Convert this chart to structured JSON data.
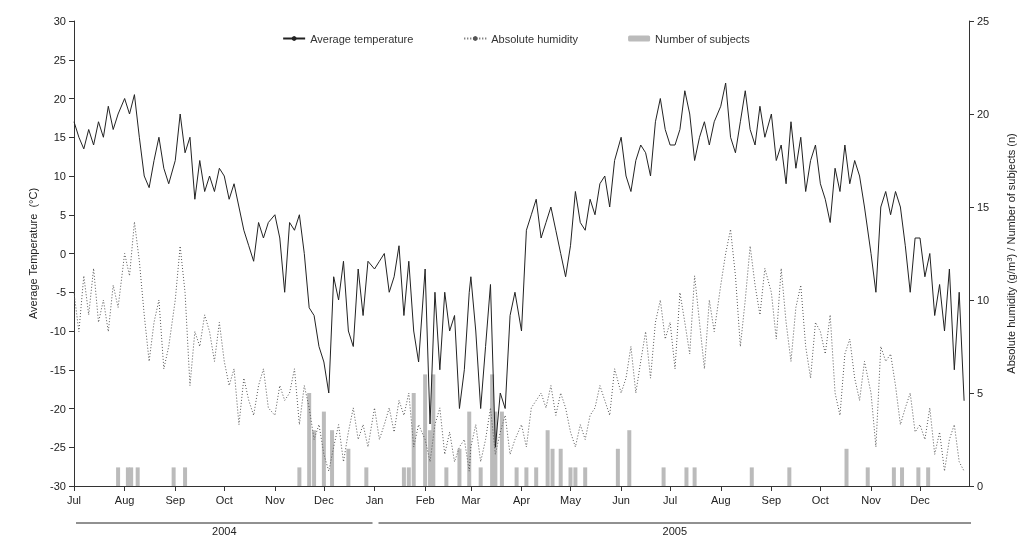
{
  "chart_data": {
    "type": "line",
    "xlabel": null,
    "ylabel": "Average Temperature  (°C)",
    "y2label": "Absolute humidity (g/m$^{3}$) / Number of subjects (n)",
    "x": [
      "2004-07-01",
      "2004-07-04",
      "2004-07-07",
      "2004-07-10",
      "2004-07-13",
      "2004-07-16",
      "2004-07-19",
      "2004-07-22",
      "2004-07-25",
      "2004-07-28",
      "2004-08-01",
      "2004-08-04",
      "2004-08-07",
      "2004-08-10",
      "2004-08-13",
      "2004-08-16",
      "2004-08-19",
      "2004-08-22",
      "2004-08-25",
      "2004-08-28",
      "2004-09-01",
      "2004-09-04",
      "2004-09-07",
      "2004-09-10",
      "2004-09-13",
      "2004-09-16",
      "2004-09-19",
      "2004-09-22",
      "2004-09-25",
      "2004-09-28",
      "2004-10-01",
      "2004-10-04",
      "2004-10-07",
      "2004-10-10",
      "2004-10-13",
      "2004-10-16",
      "2004-10-19",
      "2004-10-22",
      "2004-10-25",
      "2004-10-28",
      "2004-11-01",
      "2004-11-04",
      "2004-11-07",
      "2004-11-10",
      "2004-11-13",
      "2004-11-16",
      "2004-11-19",
      "2004-11-22",
      "2004-11-25",
      "2004-11-28",
      "2004-12-01",
      "2004-12-04",
      "2004-12-07",
      "2004-12-10",
      "2004-12-13",
      "2004-12-16",
      "2004-12-19",
      "2004-12-22",
      "2004-12-25",
      "2004-12-28",
      "2005-01-01",
      "2005-01-04",
      "2005-01-07",
      "2005-01-10",
      "2005-01-13",
      "2005-01-16",
      "2005-01-19",
      "2005-01-22",
      "2005-01-25",
      "2005-01-28",
      "2005-02-01",
      "2005-02-04",
      "2005-02-07",
      "2005-02-10",
      "2005-02-13",
      "2005-02-16",
      "2005-02-19",
      "2005-02-22",
      "2005-02-25",
      "2005-02-28",
      "2005-03-01",
      "2005-03-04",
      "2005-03-07",
      "2005-03-10",
      "2005-03-13",
      "2005-03-16",
      "2005-03-19",
      "2005-03-22",
      "2005-03-25",
      "2005-03-28",
      "2005-04-01",
      "2005-04-04",
      "2005-04-07",
      "2005-04-10",
      "2005-04-13",
      "2005-04-16",
      "2005-04-19",
      "2005-04-22",
      "2005-04-25",
      "2005-04-28",
      "2005-05-01",
      "2005-05-04",
      "2005-05-07",
      "2005-05-10",
      "2005-05-13",
      "2005-05-16",
      "2005-05-19",
      "2005-05-22",
      "2005-05-25",
      "2005-05-28",
      "2005-06-01",
      "2005-06-04",
      "2005-06-07",
      "2005-06-10",
      "2005-06-13",
      "2005-06-16",
      "2005-06-19",
      "2005-06-22",
      "2005-06-25",
      "2005-06-28",
      "2005-07-01",
      "2005-07-04",
      "2005-07-07",
      "2005-07-10",
      "2005-07-13",
      "2005-07-16",
      "2005-07-19",
      "2005-07-22",
      "2005-07-25",
      "2005-07-28",
      "2005-08-01",
      "2005-08-04",
      "2005-08-07",
      "2005-08-10",
      "2005-08-13",
      "2005-08-16",
      "2005-08-19",
      "2005-08-22",
      "2005-08-25",
      "2005-08-28",
      "2005-09-01",
      "2005-09-04",
      "2005-09-07",
      "2005-09-10",
      "2005-09-13",
      "2005-09-16",
      "2005-09-19",
      "2005-09-22",
      "2005-09-25",
      "2005-09-28",
      "2005-10-01",
      "2005-10-04",
      "2005-10-07",
      "2005-10-10",
      "2005-10-13",
      "2005-10-16",
      "2005-10-19",
      "2005-10-22",
      "2005-10-25",
      "2005-10-28",
      "2005-11-01",
      "2005-11-04",
      "2005-11-07",
      "2005-11-10",
      "2005-11-13",
      "2005-11-16",
      "2005-11-19",
      "2005-11-22",
      "2005-11-25",
      "2005-11-28",
      "2005-12-01",
      "2005-12-04",
      "2005-12-07",
      "2005-12-10",
      "2005-12-13",
      "2005-12-16",
      "2005-12-19",
      "2005-12-22",
      "2005-12-25",
      "2005-12-28"
    ],
    "series": [
      {
        "name": "Average temperature",
        "color": "#222222",
        "line_style": "solid",
        "values": [
          17,
          15,
          13.5,
          16,
          14,
          17,
          15,
          19,
          16,
          18,
          20,
          18,
          20.5,
          15,
          10,
          8.5,
          12,
          15,
          11,
          9,
          12,
          18,
          13,
          15,
          7,
          12,
          8,
          10,
          8,
          11,
          10,
          7,
          9,
          6,
          3,
          1,
          -1,
          4,
          2,
          4,
          5,
          2,
          -5,
          4,
          3,
          5,
          0,
          -7,
          -8,
          -12,
          -14,
          -18,
          -3,
          -6,
          -1,
          -10,
          -12,
          -2,
          -8,
          -1,
          -2,
          -1,
          0,
          -5,
          -3,
          1,
          -8,
          -1,
          -10,
          -14,
          -2,
          -22,
          -5,
          -15,
          -5,
          -10,
          -8,
          -20,
          -15,
          -5,
          -3,
          -10,
          -20,
          -12,
          -4,
          -25,
          -18,
          -20,
          -8,
          -5,
          -10,
          3,
          5,
          7,
          2,
          4,
          6,
          3,
          0,
          -3,
          1,
          8,
          4,
          3,
          7,
          5,
          9,
          10,
          6,
          12,
          15,
          10,
          8,
          12,
          14,
          13,
          10,
          17,
          20,
          16,
          14,
          14,
          16,
          21,
          18,
          12,
          15,
          17,
          14,
          17,
          19,
          22,
          15,
          13,
          17,
          21,
          16,
          14,
          19,
          15,
          18,
          12,
          14,
          9,
          17,
          11,
          15,
          8,
          12,
          14,
          9,
          7,
          4,
          11,
          8,
          14,
          9,
          12,
          10,
          6,
          0,
          -5,
          6,
          8,
          5,
          8,
          6,
          1,
          -5,
          2,
          2,
          -3,
          0,
          -8,
          -4,
          -10,
          -2,
          -15,
          -5,
          -19
        ]
      },
      {
        "name": "Absolute humidity",
        "axis": "y2",
        "color": "#555555",
        "line_style": "dotted",
        "values": [
          10.4,
          8.3,
          11.3,
          9.2,
          11.7,
          8.8,
          10,
          8.3,
          10.8,
          9.6,
          12.5,
          11.3,
          14.2,
          12.1,
          9.2,
          6.7,
          8.8,
          10,
          6.3,
          7.5,
          10,
          12.9,
          10.4,
          5.4,
          8.3,
          7.5,
          9.2,
          8.3,
          6.7,
          8.8,
          6.7,
          5.4,
          6.3,
          3.3,
          5.8,
          4.6,
          3.8,
          5.4,
          6.3,
          4.2,
          3.8,
          5.4,
          4.6,
          5,
          6.3,
          3.3,
          5.4,
          4.2,
          2.5,
          3.3,
          1.7,
          0.8,
          2.1,
          3.3,
          1.3,
          2.9,
          4.2,
          2.5,
          3.3,
          2.1,
          4.2,
          2.5,
          3.3,
          4.2,
          2.9,
          4.6,
          3.8,
          5,
          2.1,
          3.3,
          2.5,
          1.3,
          3.3,
          4.2,
          1.7,
          2.9,
          1.3,
          2.1,
          2.5,
          0.8,
          2.1,
          3.3,
          1.3,
          2.5,
          4.2,
          1.7,
          2.9,
          3.8,
          1.7,
          2.5,
          3.3,
          2.1,
          4.2,
          4.6,
          5,
          4.2,
          5.4,
          3.8,
          5,
          4.2,
          2.9,
          2.1,
          3.3,
          2.5,
          3.8,
          4.2,
          5.4,
          4.6,
          3.8,
          6.3,
          5,
          5.8,
          7.5,
          5,
          6.7,
          8.3,
          5.8,
          8.8,
          10,
          7.9,
          8.8,
          6.3,
          10.4,
          8.8,
          7.1,
          11.3,
          8.8,
          6.3,
          10,
          8.3,
          10.8,
          12.5,
          13.8,
          11.3,
          7.5,
          10,
          12.9,
          10.8,
          9.2,
          11.7,
          10.4,
          7.9,
          11.7,
          8.8,
          6.7,
          9.6,
          10.8,
          7.5,
          5.8,
          8.8,
          8.3,
          7.1,
          9.2,
          5,
          3.8,
          7.1,
          7.9,
          5.8,
          4.6,
          6.7,
          5,
          2.1,
          7.5,
          6.7,
          7.1,
          5.4,
          3.3,
          4.2,
          5,
          2.9,
          3.3,
          2.5,
          4.2,
          1.7,
          2.9,
          0.8,
          2.5,
          3.3,
          1.3,
          0.8
        ]
      },
      {
        "name": "Number of subjects",
        "type": "bar",
        "axis": "y2",
        "color": "#bbbbbb",
        "x": [
          "2004-07-28",
          "2004-08-03",
          "2004-08-05",
          "2004-08-09",
          "2004-08-31",
          "2004-09-07",
          "2004-11-16",
          "2004-11-22",
          "2004-11-25",
          "2004-12-01",
          "2004-12-06",
          "2004-12-16",
          "2004-12-27",
          "2005-01-19",
          "2005-01-22",
          "2005-01-25",
          "2005-02-01",
          "2005-02-04",
          "2005-02-06",
          "2005-02-14",
          "2005-02-22",
          "2005-02-28",
          "2005-03-07",
          "2005-03-14",
          "2005-03-16",
          "2005-03-20",
          "2005-03-29",
          "2005-04-04",
          "2005-04-10",
          "2005-04-17",
          "2005-04-20",
          "2005-04-25",
          "2005-05-01",
          "2005-05-04",
          "2005-05-10",
          "2005-05-30",
          "2005-06-06",
          "2005-06-27",
          "2005-07-11",
          "2005-07-16",
          "2005-08-20",
          "2005-09-12",
          "2005-10-17",
          "2005-10-30",
          "2005-11-15",
          "2005-11-20",
          "2005-11-30",
          "2005-12-06"
        ],
        "values": [
          1,
          1,
          1,
          1,
          1,
          1,
          1,
          5,
          3,
          4,
          3,
          2,
          1,
          1,
          1,
          5,
          6,
          3,
          6,
          1,
          2,
          4,
          1,
          6,
          4,
          4,
          1,
          1,
          1,
          3,
          2,
          2,
          1,
          1,
          1,
          2,
          3,
          1,
          1,
          1,
          1,
          1,
          2,
          1,
          1,
          1,
          1,
          1
        ]
      }
    ],
    "xlim": [
      "2004-07-01",
      "2005-12-31"
    ],
    "xticks": [
      {
        "value": "2004-07-01",
        "label": "Jul"
      },
      {
        "value": "2004-08-01",
        "label": "Aug"
      },
      {
        "value": "2004-09-01",
        "label": "Sep"
      },
      {
        "value": "2004-10-01",
        "label": "Oct"
      },
      {
        "value": "2004-11-01",
        "label": "Nov"
      },
      {
        "value": "2004-12-01",
        "label": "Dec"
      },
      {
        "value": "2005-01-01",
        "label": "Jan"
      },
      {
        "value": "2005-02-01",
        "label": "Feb"
      },
      {
        "value": "2005-03-01",
        "label": "Mar"
      },
      {
        "value": "2005-04-01",
        "label": "Apr"
      },
      {
        "value": "2005-05-01",
        "label": "May"
      },
      {
        "value": "2005-06-01",
        "label": "Jun"
      },
      {
        "value": "2005-07-01",
        "label": "Jul"
      },
      {
        "value": "2005-08-01",
        "label": "Aug"
      },
      {
        "value": "2005-09-01",
        "label": "Sep"
      },
      {
        "value": "2005-10-01",
        "label": "Oct"
      },
      {
        "value": "2005-11-01",
        "label": "Nov"
      },
      {
        "value": "2005-12-01",
        "label": "Dec"
      }
    ],
    "annotations": [
      "2004",
      "2005"
    ],
    "ylim": [
      -30,
      30
    ],
    "yticks": [
      -30,
      -25,
      -20,
      -15,
      -10,
      -5,
      0,
      5,
      10,
      15,
      20,
      25,
      30
    ],
    "y2lim": [
      0,
      25
    ],
    "y2ticks": [
      0,
      5,
      10,
      15,
      20,
      25
    ],
    "grid": false,
    "legend": "top",
    "marker": "none"
  }
}
